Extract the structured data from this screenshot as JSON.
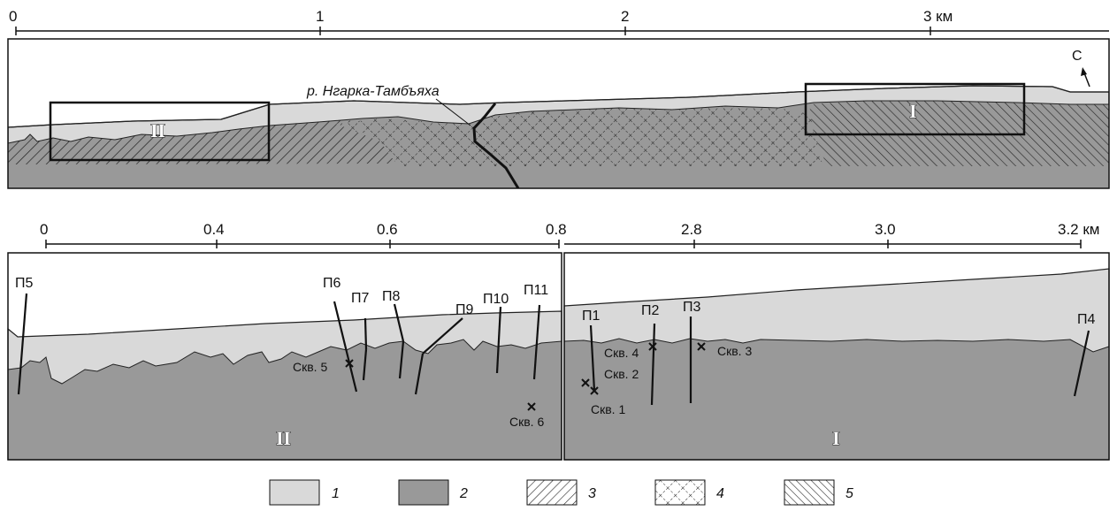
{
  "top_scale": {
    "ticks": [
      "0",
      "1",
      "2",
      "3 км"
    ]
  },
  "top_profile": {
    "river_label": "р. Нгарка-Тамбъяха",
    "north_label": "С",
    "box_labels": [
      "II",
      "I"
    ]
  },
  "bottom_left": {
    "ticks": [
      "0",
      "0.4",
      "0.6",
      "0.8"
    ],
    "profiles": [
      "П5",
      "П6",
      "П7",
      "П8",
      "П9",
      "П10",
      "П11"
    ],
    "wells": [
      "Скв. 5",
      "Скв. 6"
    ],
    "section_label": "II"
  },
  "bottom_right": {
    "ticks": [
      "2.8",
      "3.0",
      "3.2 км"
    ],
    "profiles": [
      "П1",
      "П2",
      "П3",
      "П4"
    ],
    "wells": [
      "Скв. 1",
      "Скв. 2",
      "Скв. 3",
      "Скв. 4"
    ],
    "section_label": "I"
  },
  "legend": [
    {
      "num": "1",
      "fill": "light-gray",
      "color": "#d9d9d9"
    },
    {
      "num": "2",
      "fill": "dark-gray",
      "color": "#999999"
    },
    {
      "num": "3",
      "fill": "diagonal-hatch"
    },
    {
      "num": "4",
      "fill": "dashed-crosshatch"
    },
    {
      "num": "5",
      "fill": "back-diagonal-hatch"
    }
  ]
}
